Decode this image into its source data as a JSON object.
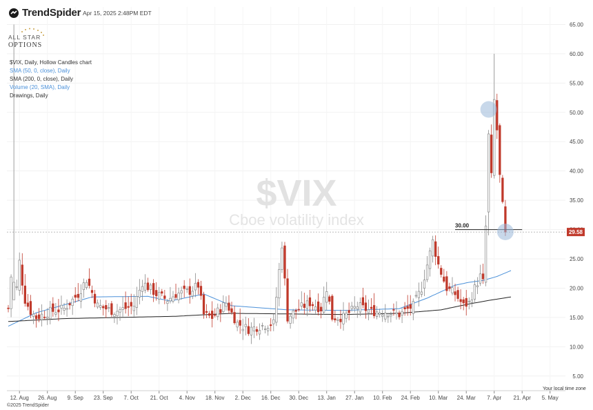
{
  "brand": {
    "name": "TrendSpider",
    "timestamp": "Apr 15, 2025 2:48PM EDT",
    "partner_logo": "ALL STAR OPTIONS"
  },
  "legend": {
    "title": "$VIX, Daily, Hollow Candles chart",
    "sma50": "SMA (50, 0, close), Daily",
    "sma200": "SMA (200, 0, close), Daily",
    "volume": "Volume (20, SMA), Daily",
    "drawings": "Drawings, Daily"
  },
  "watermark": {
    "symbol": "$VIX",
    "name": "Cboe volatility index"
  },
  "footer": {
    "timezone": "Your local time zone",
    "copyright": "©2025 TrendSpider"
  },
  "colors": {
    "up": "#888888",
    "down": "#c0392b",
    "sma50": "#4a90d9",
    "sma200": "#222222",
    "highlight": "#9ab8d8",
    "last_price_bg": "#c0392b"
  },
  "chart_data": {
    "type": "candlestick",
    "ylim": [
      2.5,
      68
    ],
    "y_ticks": [
      "5.00",
      "10.00",
      "15.00",
      "20.00",
      "25.00",
      "30.00",
      "35.00",
      "40.00",
      "45.00",
      "50.00",
      "55.00",
      "60.00",
      "65.00"
    ],
    "x_ticks": [
      "12. Aug",
      "26. Aug",
      "9. Sep",
      "23. Sep",
      "7. Oct",
      "21. Oct",
      "4. Nov",
      "18. Nov",
      "2. Dec",
      "16. Dec",
      "30. Dec",
      "13. Jan",
      "27. Jan",
      "10. Feb",
      "24. Feb",
      "10. Mar",
      "24. Mar",
      "7. Apr",
      "21. Apr",
      "5. May"
    ],
    "price_line": {
      "value": 30.0,
      "label": "30.00"
    },
    "last_price": {
      "value": 29.58,
      "label": "29.58"
    },
    "highlights": [
      {
        "bar": 172,
        "value": 50.5
      },
      {
        "bar": 178,
        "value": 29.6
      }
    ],
    "anchors": [
      [
        0,
        16.5
      ],
      [
        1,
        22
      ],
      [
        2,
        65
      ],
      [
        3,
        20
      ],
      [
        4,
        24.5
      ],
      [
        5,
        21
      ],
      [
        6,
        18
      ],
      [
        8,
        16
      ],
      [
        10,
        15
      ],
      [
        15,
        16
      ],
      [
        20,
        16.5
      ],
      [
        25,
        19
      ],
      [
        28,
        21.5
      ],
      [
        32,
        17
      ],
      [
        38,
        16
      ],
      [
        45,
        17
      ],
      [
        48,
        21
      ],
      [
        53,
        19
      ],
      [
        57,
        18
      ],
      [
        60,
        19
      ],
      [
        65,
        19.5
      ],
      [
        68,
        20.5
      ],
      [
        70,
        15.5
      ],
      [
        73,
        15
      ],
      [
        78,
        17.5
      ],
      [
        82,
        14
      ],
      [
        86,
        13
      ],
      [
        90,
        13.5
      ],
      [
        95,
        14
      ],
      [
        98,
        27.5
      ],
      [
        100,
        15
      ],
      [
        104,
        16.5
      ],
      [
        108,
        17.5
      ],
      [
        112,
        16.5
      ],
      [
        114,
        20
      ],
      [
        116,
        15
      ],
      [
        120,
        15
      ],
      [
        125,
        17
      ],
      [
        130,
        16
      ],
      [
        135,
        16
      ],
      [
        140,
        15.5
      ],
      [
        145,
        17
      ],
      [
        148,
        20
      ],
      [
        150,
        24
      ],
      [
        152,
        28
      ],
      [
        154,
        24
      ],
      [
        157,
        20
      ],
      [
        160,
        19
      ],
      [
        163,
        17
      ],
      [
        165,
        17.5
      ],
      [
        167,
        20
      ],
      [
        169,
        22
      ],
      [
        170,
        21
      ],
      [
        171,
        30.5
      ],
      [
        172,
        46
      ],
      [
        173,
        39
      ],
      [
        174,
        52
      ],
      [
        175,
        47
      ],
      [
        176,
        39
      ],
      [
        177,
        34
      ],
      [
        178,
        29.58
      ]
    ],
    "sma50_anchors": [
      [
        0,
        13.5
      ],
      [
        10,
        15.8
      ],
      [
        30,
        18.5
      ],
      [
        50,
        18.6
      ],
      [
        58,
        17.8
      ],
      [
        70,
        19
      ],
      [
        80,
        17
      ],
      [
        100,
        16.3
      ],
      [
        120,
        16.2
      ],
      [
        140,
        16.5
      ],
      [
        150,
        18.3
      ],
      [
        160,
        20.5
      ],
      [
        165,
        21
      ],
      [
        170,
        21.3
      ],
      [
        175,
        22
      ],
      [
        180,
        23
      ]
    ],
    "sma200_anchors": [
      [
        0,
        14.3
      ],
      [
        20,
        14.8
      ],
      [
        40,
        15
      ],
      [
        60,
        15.2
      ],
      [
        80,
        15.7
      ],
      [
        100,
        15.6
      ],
      [
        120,
        15.5
      ],
      [
        140,
        15.7
      ],
      [
        155,
        16.3
      ],
      [
        165,
        17.3
      ],
      [
        172,
        17.9
      ],
      [
        180,
        18.5
      ]
    ]
  }
}
